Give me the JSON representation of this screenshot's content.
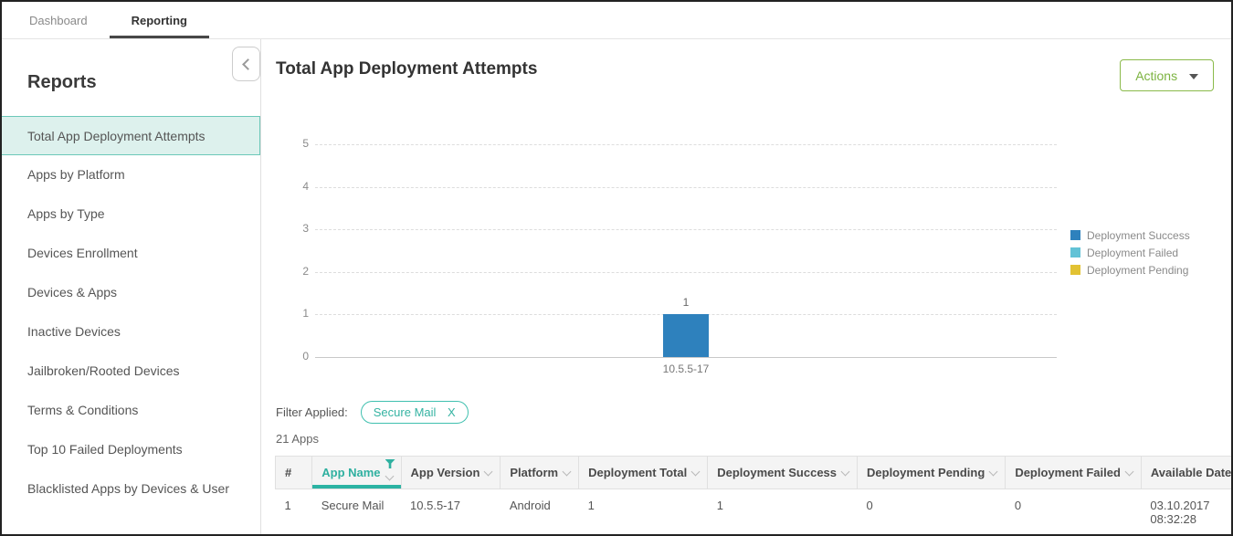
{
  "colors": {
    "accent_teal": "#2fb3a3",
    "selected_item_bg": "#ddf1ed",
    "selected_item_border": "#6cc8b9",
    "action_green": "#7cb340",
    "bar_blue": "#2e81bd",
    "legend_light_blue": "#62c2d6",
    "legend_yellow": "#e2c233"
  },
  "tabs": [
    {
      "label": "Dashboard",
      "active": false
    },
    {
      "label": "Reporting",
      "active": true
    }
  ],
  "sidebar": {
    "title": "Reports",
    "items": [
      {
        "label": "Total App Deployment Attempts",
        "selected": true
      },
      {
        "label": "Apps by Platform",
        "selected": false
      },
      {
        "label": "Apps by Type",
        "selected": false
      },
      {
        "label": "Devices Enrollment",
        "selected": false
      },
      {
        "label": "Devices & Apps",
        "selected": false
      },
      {
        "label": "Inactive Devices",
        "selected": false
      },
      {
        "label": "Jailbroken/Rooted Devices",
        "selected": false
      },
      {
        "label": "Terms & Conditions",
        "selected": false
      },
      {
        "label": "Top 10 Failed Deployments",
        "selected": false
      },
      {
        "label": "Blacklisted Apps by Devices & User",
        "selected": false
      }
    ]
  },
  "main": {
    "title": "Total App Deployment Attempts",
    "actions_button": "Actions",
    "filter_label": "Filter Applied:",
    "filter_chip": {
      "label": "Secure Mail",
      "close": "X"
    },
    "apps_count": "21 Apps"
  },
  "chart_data": {
    "type": "bar",
    "title": "",
    "xlabel": "",
    "ylabel": "",
    "categories": [
      "10.5.5-17"
    ],
    "series": [
      {
        "name": "Deployment Success",
        "color": "#2e81bd",
        "values": [
          1
        ]
      },
      {
        "name": "Deployment Failed",
        "color": "#62c2d6",
        "values": [
          0
        ]
      },
      {
        "name": "Deployment Pending",
        "color": "#e2c233",
        "values": [
          0
        ]
      }
    ],
    "ylim": [
      0,
      5
    ],
    "yticks": [
      0,
      1,
      2,
      3,
      4,
      5
    ],
    "grid": "horizontal-dashed",
    "legend_position": "right"
  },
  "table": {
    "columns": [
      {
        "label": "#",
        "sortable": false,
        "filtered": false,
        "active": false
      },
      {
        "label": "App Name",
        "sortable": true,
        "filtered": true,
        "active": true
      },
      {
        "label": "App Version",
        "sortable": true,
        "filtered": false,
        "active": false
      },
      {
        "label": "Platform",
        "sortable": true,
        "filtered": false,
        "active": false
      },
      {
        "label": "Deployment Total",
        "sortable": true,
        "filtered": false,
        "active": false
      },
      {
        "label": "Deployment Success",
        "sortable": true,
        "filtered": false,
        "active": false
      },
      {
        "label": "Deployment Pending",
        "sortable": true,
        "filtered": false,
        "active": false
      },
      {
        "label": "Deployment Failed",
        "sortable": true,
        "filtered": false,
        "active": false
      },
      {
        "label": "Available Date",
        "sortable": false,
        "filtered": false,
        "active": false
      }
    ],
    "rows": [
      [
        "1",
        "Secure Mail",
        "10.5.5-17",
        "Android",
        "1",
        "1",
        "0",
        "0",
        "03.10.2017 08:32:28"
      ]
    ]
  }
}
